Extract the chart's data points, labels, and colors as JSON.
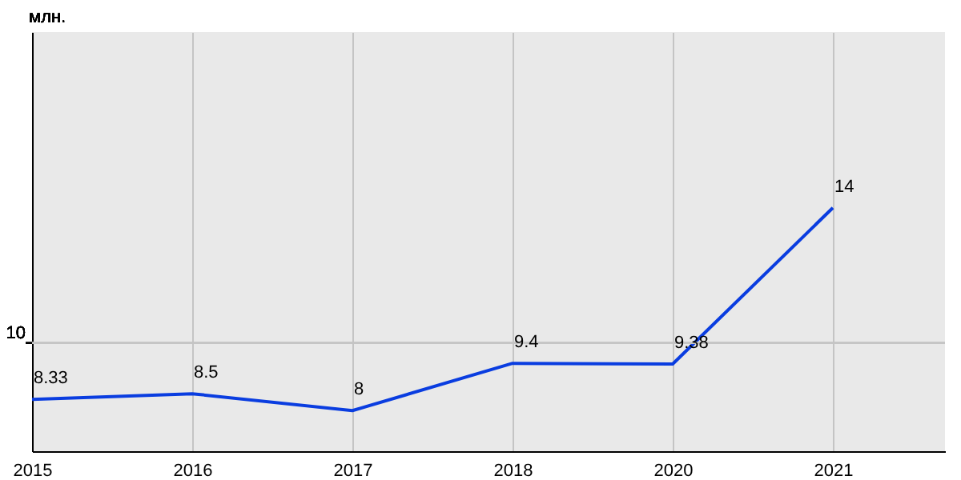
{
  "chart_data": {
    "type": "line",
    "annotations": [
      "млн."
    ],
    "ylim": [
      6.8,
      19.2
    ],
    "categories": [
      "2015",
      "2016",
      "2017",
      "2018",
      "2020",
      "2021"
    ],
    "series": [
      {
        "color": "#0a3de0",
        "values": [
          8.33,
          8.5,
          8,
          9.4,
          9.38,
          14
        ]
      }
    ],
    "ref_lines": [
      {
        "axis": "y",
        "value": 10,
        "label": "10",
        "color": "#c4c4c4"
      }
    ],
    "grid": "x",
    "data_labels": true,
    "marker": "none",
    "line_style": "solid"
  }
}
